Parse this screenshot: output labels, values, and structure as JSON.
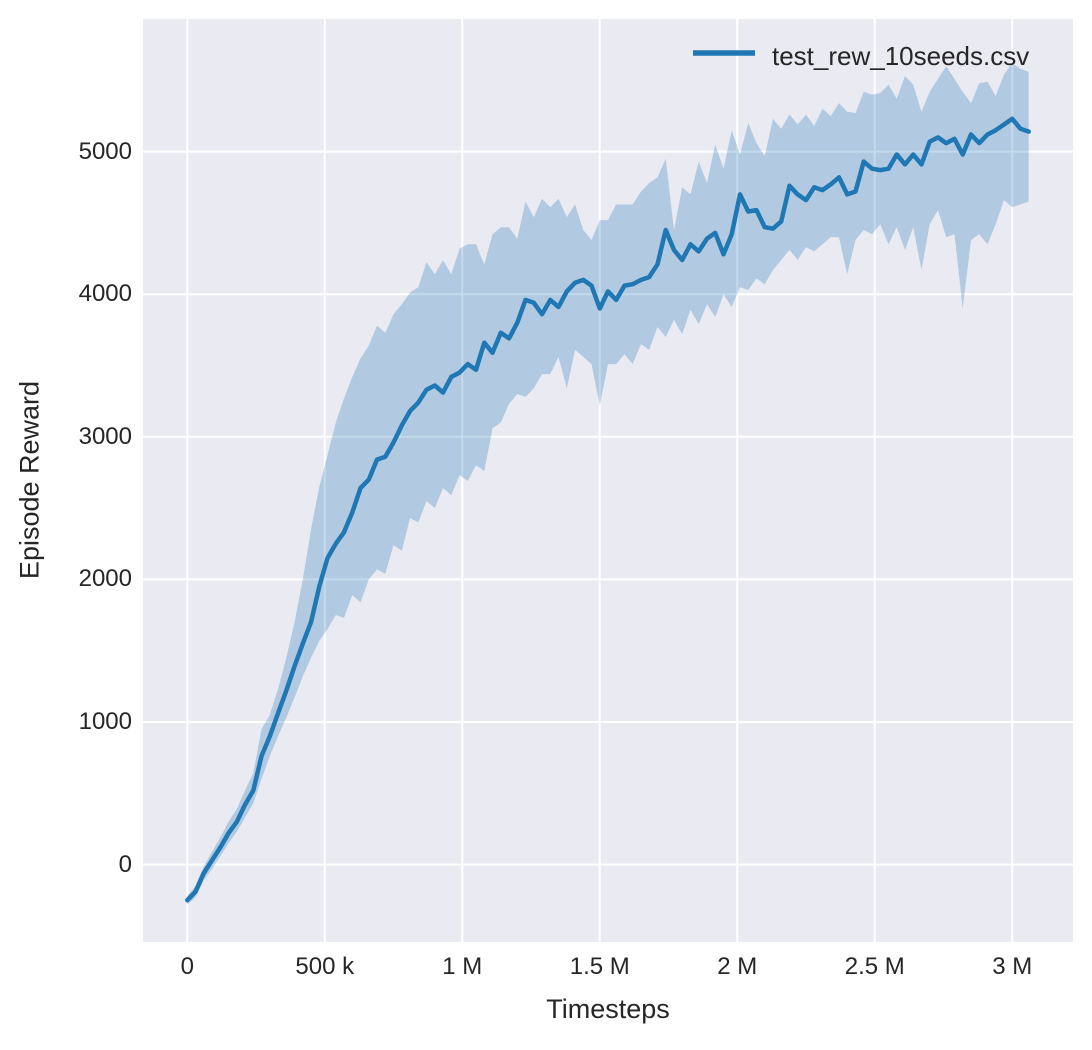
{
  "figure": {
    "background": "#ffffff",
    "plot_background": "#eaeaf2",
    "grid_color": "#ffffff",
    "text_color": "#262626"
  },
  "legend": {
    "label": "test_rew_10seeds.csv",
    "line_color": "#1f77b4"
  },
  "chart_data": {
    "type": "line",
    "title": "",
    "xlabel": "Timesteps",
    "ylabel": "Episode Reward",
    "grid": true,
    "legend_position": "upper right",
    "xlim": [
      -161000,
      3221000
    ],
    "ylim": [
      -543,
      5930
    ],
    "x_ticks": [
      {
        "value": 0,
        "label": "0"
      },
      {
        "value": 500000,
        "label": "500 k"
      },
      {
        "value": 1000000,
        "label": "1 M"
      },
      {
        "value": 1500000,
        "label": "1.5 M"
      },
      {
        "value": 2000000,
        "label": "2 M"
      },
      {
        "value": 2500000,
        "label": "2.5 M"
      },
      {
        "value": 3000000,
        "label": "3 M"
      }
    ],
    "y_ticks": [
      {
        "value": 0,
        "label": "0"
      },
      {
        "value": 1000,
        "label": "1000"
      },
      {
        "value": 2000,
        "label": "2000"
      },
      {
        "value": 3000,
        "label": "3000"
      },
      {
        "value": 4000,
        "label": "4000"
      },
      {
        "value": 5000,
        "label": "5000"
      }
    ],
    "series": [
      {
        "name": "test_rew_10seeds.csv",
        "color": "#1f77b4",
        "band_fill": "rgba(31,119,180,0.27)",
        "x": [
          0,
          30000,
          60000,
          90000,
          120000,
          150000,
          180000,
          210000,
          240000,
          270000,
          300000,
          330000,
          360000,
          390000,
          420000,
          450000,
          480000,
          510000,
          540000,
          570000,
          600000,
          630000,
          660000,
          690000,
          720000,
          750000,
          780000,
          810000,
          840000,
          870000,
          900000,
          930000,
          960000,
          990000,
          1020000,
          1050000,
          1080000,
          1110000,
          1140000,
          1170000,
          1200000,
          1230000,
          1260000,
          1290000,
          1320000,
          1350000,
          1380000,
          1410000,
          1440000,
          1470000,
          1500000,
          1530000,
          1560000,
          1590000,
          1620000,
          1650000,
          1680000,
          1710000,
          1740000,
          1770000,
          1800000,
          1830000,
          1860000,
          1890000,
          1920000,
          1950000,
          1980000,
          2010000,
          2040000,
          2070000,
          2100000,
          2130000,
          2160000,
          2190000,
          2220000,
          2250000,
          2280000,
          2310000,
          2340000,
          2370000,
          2400000,
          2430000,
          2460000,
          2490000,
          2520000,
          2550000,
          2580000,
          2610000,
          2640000,
          2670000,
          2700000,
          2730000,
          2760000,
          2790000,
          2820000,
          2850000,
          2880000,
          2910000,
          2940000,
          2970000,
          3000000,
          3030000,
          3060000
        ],
        "mean": [
          -250,
          -190,
          -60,
          30,
          120,
          220,
          300,
          420,
          520,
          760,
          900,
          1060,
          1220,
          1390,
          1550,
          1700,
          1950,
          2150,
          2250,
          2330,
          2470,
          2640,
          2700,
          2840,
          2860,
          2960,
          3080,
          3180,
          3240,
          3330,
          3360,
          3310,
          3420,
          3450,
          3510,
          3470,
          3660,
          3590,
          3730,
          3690,
          3800,
          3960,
          3940,
          3860,
          3960,
          3910,
          4020,
          4080,
          4100,
          4060,
          3900,
          4020,
          3960,
          4060,
          4070,
          4100,
          4120,
          4210,
          4450,
          4310,
          4240,
          4350,
          4300,
          4390,
          4430,
          4280,
          4420,
          4700,
          4580,
          4590,
          4470,
          4460,
          4510,
          4760,
          4700,
          4660,
          4750,
          4730,
          4770,
          4820,
          4700,
          4720,
          4930,
          4880,
          4870,
          4880,
          4980,
          4910,
          4980,
          4910,
          5070,
          5100,
          5060,
          5090,
          4980,
          5120,
          5060,
          5120,
          5150,
          5190,
          5230,
          5160,
          5140
        ],
        "band_upper": [
          -220,
          -150,
          -10,
          90,
          190,
          300,
          390,
          520,
          640,
          950,
          1050,
          1230,
          1450,
          1700,
          2000,
          2350,
          2650,
          2870,
          3100,
          3270,
          3420,
          3550,
          3640,
          3780,
          3730,
          3860,
          3930,
          4010,
          4050,
          4225,
          4140,
          4240,
          4140,
          4320,
          4350,
          4350,
          4210,
          4420,
          4470,
          4470,
          4390,
          4650,
          4540,
          4670,
          4610,
          4670,
          4540,
          4630,
          4450,
          4380,
          4520,
          4520,
          4630,
          4630,
          4630,
          4720,
          4780,
          4820,
          4950,
          4450,
          4750,
          4700,
          4930,
          4780,
          5050,
          4880,
          5150,
          4980,
          5200,
          5060,
          4970,
          5230,
          5160,
          5260,
          5190,
          5260,
          5180,
          5300,
          5250,
          5340,
          5280,
          5270,
          5420,
          5400,
          5410,
          5470,
          5370,
          5530,
          5470,
          5280,
          5420,
          5510,
          5600,
          5510,
          5420,
          5340,
          5480,
          5490,
          5390,
          5540,
          5620,
          5580,
          5560
        ],
        "band_lower": [
          -280,
          -230,
          -110,
          -30,
          60,
          150,
          230,
          330,
          430,
          600,
          760,
          900,
          1030,
          1170,
          1320,
          1450,
          1570,
          1650,
          1750,
          1730,
          1890,
          1840,
          2000,
          2070,
          2040,
          2240,
          2200,
          2430,
          2400,
          2550,
          2500,
          2640,
          2590,
          2730,
          2690,
          2800,
          2760,
          3060,
          3100,
          3230,
          3300,
          3280,
          3340,
          3440,
          3440,
          3560,
          3340,
          3610,
          3560,
          3510,
          3220,
          3510,
          3510,
          3580,
          3510,
          3650,
          3610,
          3770,
          3700,
          3820,
          3720,
          3890,
          3790,
          3930,
          3840,
          4000,
          3910,
          4050,
          4030,
          4110,
          4070,
          4170,
          4240,
          4310,
          4240,
          4330,
          4300,
          4350,
          4400,
          4400,
          4140,
          4380,
          4450,
          4420,
          4490,
          4350,
          4470,
          4310,
          4470,
          4170,
          4490,
          4590,
          4400,
          4420,
          3900,
          4380,
          4420,
          4350,
          4490,
          4660,
          4610,
          4630,
          4650
        ]
      }
    ]
  }
}
